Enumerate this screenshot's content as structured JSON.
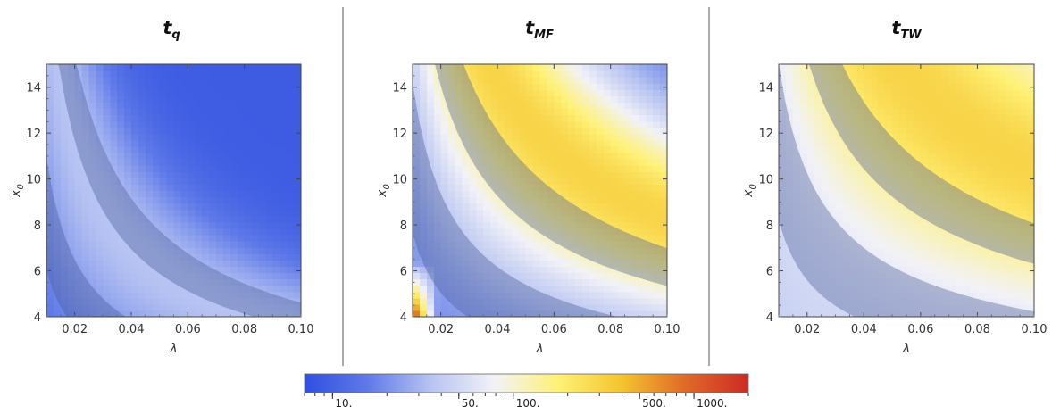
{
  "chart_data": {
    "type": "heatmap",
    "colorbar": {
      "scale": "log",
      "range": [
        7,
        2000
      ],
      "colors": [
        "#2f4fe0",
        "#5f7ae8",
        "#b8c4f2",
        "#f2f2f7",
        "#fff176",
        "#f4c430",
        "#e06a28",
        "#cc2a26"
      ],
      "tick_labels": [
        "10.",
        "50.",
        "100.",
        "500.",
        "1000."
      ],
      "tick_values": [
        10,
        50,
        100,
        500,
        1000
      ]
    },
    "panels": [
      {
        "title": "t",
        "subscript": "q",
        "xlabel": "λ",
        "ylabel": "x",
        "ylabel_sub": "0",
        "xlim": [
          0.01,
          0.1
        ],
        "ylim": [
          4,
          15
        ],
        "xticks": [
          "0.02",
          "0.04",
          "0.06",
          "0.08",
          "0.10"
        ],
        "yticks": [
          "4",
          "6",
          "8",
          "10",
          "12",
          "14"
        ],
        "field": {
          "peak_value": 35,
          "floor_value": 9,
          "peak_exponent": 0.75,
          "peak_position": 0.33,
          "falloff": 0.45,
          "corner_value": null
        },
        "shaded_bands": [
          [
            0.22,
            0.4
          ],
          [
            0.72,
            0.95
          ]
        ]
      },
      {
        "title": "t",
        "subscript": "MF",
        "xlabel": "λ",
        "ylabel": "x",
        "ylabel_sub": "0",
        "xlim": [
          0.01,
          0.1
        ],
        "ylim": [
          4,
          15
        ],
        "xticks": [
          "0.02",
          "0.04",
          "0.06",
          "0.08",
          "0.10"
        ],
        "yticks": [
          "4",
          "6",
          "8",
          "10",
          "12",
          "14"
        ],
        "field": {
          "peak_value": 300,
          "floor_value": 15,
          "peak_exponent": 0.6,
          "peak_position": 0.55,
          "falloff": 0.5,
          "corner_value": 1800
        },
        "shaded_bands": [
          [
            0.28,
            0.52
          ],
          [
            0.78,
            1.02
          ]
        ]
      },
      {
        "title": "t",
        "subscript": "TW",
        "xlabel": "λ",
        "ylabel": "x",
        "ylabel_sub": "0",
        "xlim": [
          0.01,
          0.1
        ],
        "ylim": [
          4,
          15
        ],
        "xticks": [
          "0.02",
          "0.04",
          "0.06",
          "0.08",
          "0.10"
        ],
        "yticks": [
          "4",
          "6",
          "8",
          "10",
          "12",
          "14"
        ],
        "field": {
          "peak_value": 300,
          "floor_value": 40,
          "peak_exponent": 0.55,
          "peak_position": 0.62,
          "falloff": 0.55,
          "corner_value": null
        },
        "shaded_bands": [
          [
            0.3,
            0.55
          ],
          [
            0.82,
            1.05
          ]
        ]
      }
    ]
  }
}
